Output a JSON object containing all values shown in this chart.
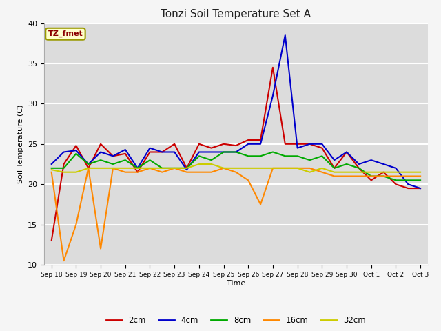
{
  "title": "Tonzi Soil Temperature Set A",
  "xlabel": "Time",
  "ylabel": "Soil Temperature (C)",
  "ylim": [
    10,
    40
  ],
  "annotation": "TZ_fmet",
  "background_color": "#dcdcdc",
  "fig_background": "#f5f5f5",
  "grid_color": "#ffffff",
  "x_labels": [
    "Sep 18",
    "Sep 19",
    "Sep 20",
    "Sep 21",
    "Sep 22",
    "Sep 23",
    "Sep 24",
    "Sep 25",
    "Sep 26",
    "Sep 27",
    "Sep 28",
    "Sep 29",
    "Sep 30",
    "Oct 1",
    "Oct 2",
    "Oct 3"
  ],
  "series": {
    "2cm": {
      "color": "#cc0000"
    },
    "4cm": {
      "color": "#0000cc"
    },
    "8cm": {
      "color": "#00aa00"
    },
    "16cm": {
      "color": "#ff8800"
    },
    "32cm": {
      "color": "#cccc00"
    }
  },
  "x_2cm": [
    0,
    0.5,
    1,
    1.5,
    2,
    2.5,
    3,
    3.5,
    4,
    4.5,
    5,
    5.5,
    6,
    6.5,
    7,
    7.5,
    8,
    8.5,
    9,
    9.5,
    10,
    10.5,
    11,
    11.5,
    12,
    12.5,
    13,
    13.5,
    14,
    14.5,
    15
  ],
  "y_2cm": [
    13,
    22.5,
    24.8,
    22,
    25,
    23.5,
    23.8,
    21.5,
    24,
    24,
    25,
    22,
    25,
    24.5,
    25,
    24.8,
    25.5,
    25.5,
    34.5,
    25,
    25,
    25,
    24.5,
    22,
    24,
    22,
    20.5,
    21.5,
    20,
    19.5,
    19.5
  ],
  "x_4cm": [
    0,
    0.5,
    1,
    1.5,
    2,
    2.5,
    3,
    3.5,
    4,
    4.5,
    5,
    5.5,
    6,
    6.5,
    7,
    7.5,
    8,
    8.5,
    9,
    9.5,
    10,
    10.5,
    11,
    11.5,
    12,
    12.5,
    13,
    13.5,
    14,
    14.5,
    15
  ],
  "y_4cm": [
    22.5,
    24,
    24.2,
    22.5,
    24,
    23.5,
    24.3,
    22,
    24.5,
    24,
    24,
    21.8,
    24,
    24,
    24,
    24,
    25,
    25,
    31,
    38.5,
    24.5,
    25,
    25,
    23,
    24,
    22.5,
    23,
    22.5,
    22,
    20,
    19.5
  ],
  "x_8cm": [
    0,
    0.5,
    1,
    1.5,
    2,
    2.5,
    3,
    3.5,
    4,
    4.5,
    5,
    5.5,
    6,
    6.5,
    7,
    7.5,
    8,
    8.5,
    9,
    9.5,
    10,
    10.5,
    11,
    11.5,
    12,
    12.5,
    13,
    13.5,
    14,
    14.5,
    15
  ],
  "y_8cm": [
    22,
    22,
    23.8,
    22.5,
    23,
    22.5,
    23,
    22,
    23,
    22,
    22,
    22,
    23.5,
    23,
    24,
    24,
    23.5,
    23.5,
    24,
    23.5,
    23.5,
    23,
    23.5,
    22,
    22.5,
    22,
    21,
    21,
    20.5,
    20.5,
    20.5
  ],
  "x_16cm": [
    0,
    0.5,
    1,
    1.5,
    2,
    2.5,
    3,
    3.5,
    4,
    4.5,
    5,
    5.5,
    6,
    6.5,
    7,
    7.5,
    8,
    8.5,
    9,
    9.5,
    10,
    10.5,
    11,
    11.5,
    12,
    12.5,
    13,
    13.5,
    14,
    14.5,
    15
  ],
  "y_16cm": [
    21.5,
    10.5,
    15,
    22,
    12,
    22,
    21.5,
    21.5,
    22,
    21.5,
    22,
    21.5,
    21.5,
    21.5,
    22,
    21.5,
    20.5,
    17.5,
    22,
    22,
    22,
    22,
    21.5,
    21,
    21,
    21,
    21,
    21,
    21,
    21,
    21
  ],
  "x_32cm": [
    0,
    0.5,
    1,
    1.5,
    2,
    2.5,
    3,
    3.5,
    4,
    4.5,
    5,
    5.5,
    6,
    6.5,
    7,
    7.5,
    8,
    8.5,
    9,
    9.5,
    10,
    10.5,
    11,
    11.5,
    12,
    12.5,
    13,
    13.5,
    14,
    14.5,
    15
  ],
  "y_32cm": [
    21.8,
    21.5,
    21.5,
    22,
    22,
    22,
    22,
    22,
    22,
    22,
    22,
    22,
    22.5,
    22.5,
    22,
    22,
    22,
    22,
    22,
    22,
    22,
    21.5,
    22,
    21.5,
    21.5,
    21.5,
    21.5,
    21.5,
    21.5,
    21.5,
    21.5
  ]
}
